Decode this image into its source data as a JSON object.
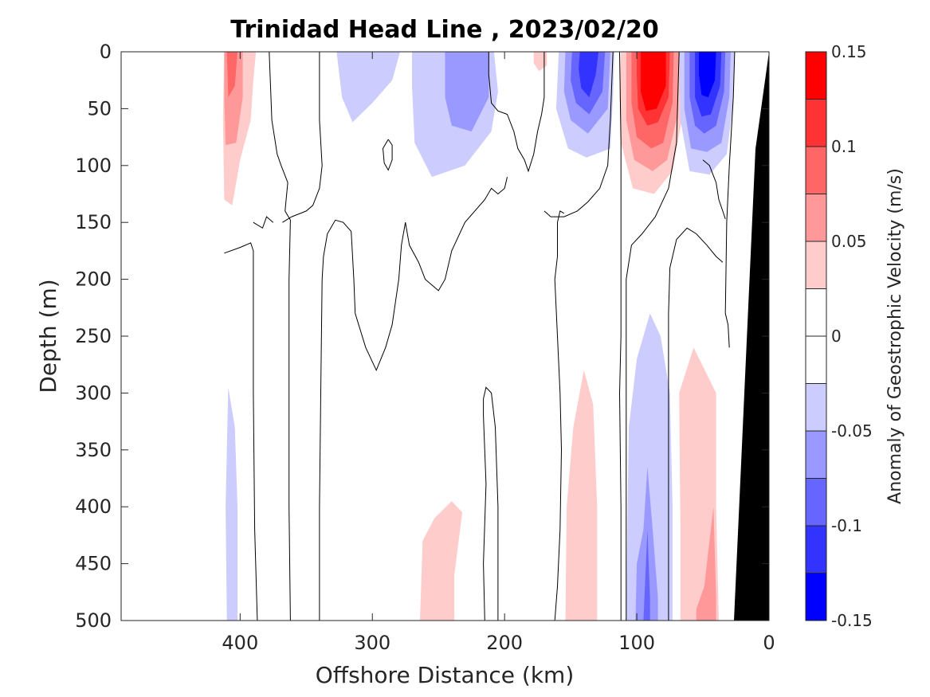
{
  "colors": {
    "positive_scale": [
      "#ffcccc",
      "#ff9999",
      "#ff6666",
      "#ff3333",
      "#ff0000"
    ],
    "negative_scale": [
      "#ccccff",
      "#9999ff",
      "#6666ff",
      "#3333ff",
      "#0000ff"
    ],
    "zero": "#ffffff",
    "contour": "#000000",
    "land": "#000000"
  },
  "chart_data": {
    "type": "heatmap",
    "title": "Trinidad Head Line , 2023/02/20",
    "xlabel": "Offshore Distance (km)",
    "ylabel": "Depth (m)",
    "colorbar_label": "Anomaly of Geostrophic Velocity (m/s)",
    "xlim": [
      490,
      0
    ],
    "ylim": [
      0,
      500
    ],
    "y_reversed": true,
    "x_reversed": true,
    "xticks": [
      400,
      300,
      200,
      100,
      0
    ],
    "xtick_labels": [
      "400",
      "300",
      "200",
      "100",
      "0"
    ],
    "yticks": [
      0,
      50,
      100,
      150,
      200,
      250,
      300,
      350,
      400,
      450,
      500
    ],
    "ytick_labels": [
      "0",
      "50",
      "100",
      "150",
      "200",
      "250",
      "300",
      "350",
      "400",
      "450",
      "500"
    ],
    "colorbar_range": [
      -0.15,
      0.15
    ],
    "colorbar_levels": [
      -0.15,
      -0.125,
      -0.1,
      -0.075,
      -0.05,
      -0.025,
      0,
      0.025,
      0.05,
      0.075,
      0.1,
      0.125,
      0.15
    ],
    "colorbar_ticks": [
      0.15,
      0.1,
      0.05,
      0,
      -0.05,
      -0.1,
      -0.15
    ],
    "colorbar_tick_labels": [
      "0.15",
      "0.1",
      "0.05",
      "0",
      "-0.05",
      "-0.1",
      "-0.15"
    ],
    "contour_level": 0,
    "notable_features": [
      {
        "name": "surface jet",
        "sign": "positive",
        "x_km": 88,
        "depth_range_m": [
          0,
          120
        ],
        "peak": 0.15
      },
      {
        "name": "surface jet",
        "sign": "negative",
        "x_km": 138,
        "depth_range_m": [
          0,
          90
        ],
        "peak": -0.15
      },
      {
        "name": "surface jet",
        "sign": "negative",
        "x_km": 45,
        "depth_range_m": [
          0,
          80
        ],
        "peak": -0.15
      },
      {
        "name": "upper band",
        "sign": "positive",
        "x_km": 405,
        "depth_range_m": [
          0,
          135
        ],
        "peak": 0.1
      },
      {
        "name": "upper band",
        "sign": "negative",
        "x_km": 240,
        "depth_range_m": [
          0,
          100
        ],
        "peak": -0.075
      },
      {
        "name": "deep band",
        "sign": "negative",
        "x_km": 90,
        "depth_range_m": [
          230,
          500
        ],
        "peak": -0.075
      },
      {
        "name": "deep band",
        "sign": "positive",
        "x_km": 55,
        "depth_range_m": [
          260,
          500
        ],
        "peak": 0.1
      },
      {
        "name": "deep band",
        "sign": "positive",
        "x_km": 140,
        "depth_range_m": [
          280,
          500
        ],
        "peak": 0.05
      },
      {
        "name": "deep band",
        "sign": "positive",
        "x_km": 250,
        "depth_range_m": [
          395,
          500
        ],
        "peak": 0.05
      }
    ]
  }
}
